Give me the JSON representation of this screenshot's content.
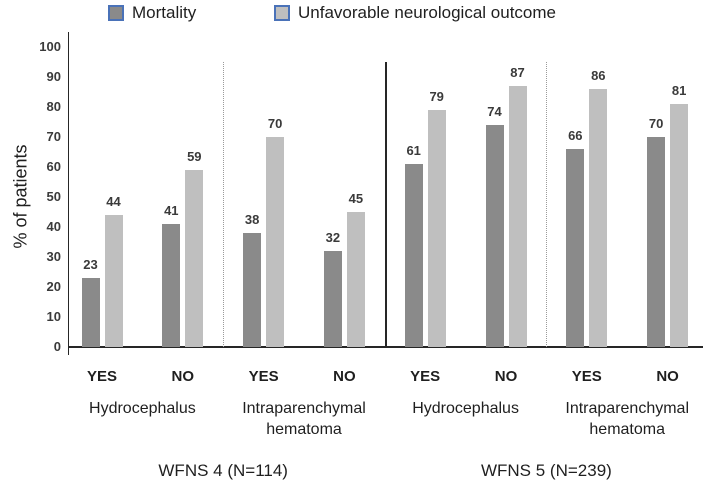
{
  "legend": {
    "items": [
      {
        "label": "Mortality",
        "fill": "#8a8a8a",
        "border": "#4a72b8"
      },
      {
        "label": "Unfavorable neurological outcome",
        "fill": "#bfbfbf",
        "border": "#4a72b8"
      }
    ]
  },
  "chart_data": {
    "type": "bar",
    "title": "",
    "ylabel": "% of patients",
    "ylim": [
      0,
      100
    ],
    "ytick_step": 10,
    "yticks": [
      0,
      10,
      20,
      30,
      40,
      50,
      60,
      70,
      80,
      90,
      100
    ],
    "grid": false,
    "legend_position": "top",
    "series_names": [
      "Mortality",
      "Unfavorable neurological outcome"
    ],
    "colors": {
      "mortality": "#8a8a8a",
      "unfavorable": "#bfbfbf"
    },
    "divider_between_groups": "dashed",
    "divider_between_sections": "solid",
    "sections": [
      {
        "label": "WFNS 4 (N=114)",
        "groups": [
          {
            "condition": "Hydrocephalus",
            "pairs": [
              {
                "tick": "YES",
                "values": [
                  23,
                  44
                ]
              },
              {
                "tick": "NO",
                "values": [
                  41,
                  59
                ]
              }
            ]
          },
          {
            "condition": "Intraparenchymal hematoma",
            "pairs": [
              {
                "tick": "YES",
                "values": [
                  38,
                  70
                ]
              },
              {
                "tick": "NO",
                "values": [
                  32,
                  45
                ]
              }
            ]
          }
        ]
      },
      {
        "label": "WFNS 5 (N=239)",
        "groups": [
          {
            "condition": "Hydrocephalus",
            "pairs": [
              {
                "tick": "YES",
                "values": [
                  61,
                  79
                ]
              },
              {
                "tick": "NO",
                "values": [
                  74,
                  87
                ]
              }
            ]
          },
          {
            "condition": "Intraparenchymal hematoma",
            "pairs": [
              {
                "tick": "YES",
                "values": [
                  66,
                  86
                ]
              },
              {
                "tick": "NO",
                "values": [
                  70,
                  81
                ]
              }
            ]
          }
        ]
      }
    ]
  }
}
